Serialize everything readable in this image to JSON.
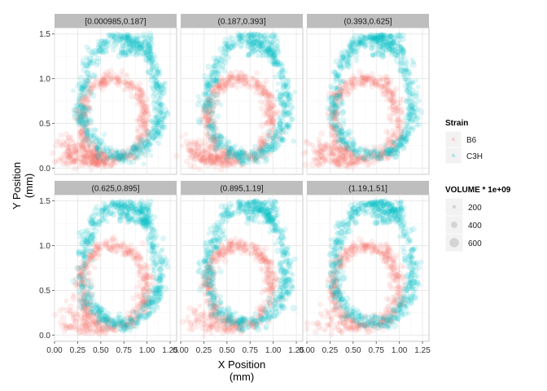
{
  "chart_data": {
    "type": "scatter",
    "facet_labels": [
      "[0.000985,0.187]",
      "(0.187,0.393]",
      "(0.393,0.625]",
      "(0.625,0.895]",
      "(0.895,1.19]",
      "(1.19,1.51]"
    ],
    "xlabel_line1": "X Position",
    "xlabel_line2": "(mm)",
    "ylabel_line1": "Y Position",
    "ylabel_line2": "(mm)",
    "xlim": [
      0.0,
      1.32
    ],
    "ylim": [
      -0.07,
      1.57
    ],
    "x_ticks": [
      0.0,
      0.25,
      0.5,
      0.75,
      1.0,
      1.25
    ],
    "x_tick_labels": [
      "0.00",
      "0.25",
      "0.50",
      "0.75",
      "1.00",
      "1.25"
    ],
    "y_ticks": [
      0.0,
      0.5,
      1.0,
      1.5
    ],
    "y_tick_labels": [
      "0.0",
      "0.5",
      "1.0",
      "1.5"
    ],
    "grid": true,
    "legend_placement": "right",
    "series": [
      {
        "name": "B6",
        "color": "#F8766D"
      },
      {
        "name": "C3H",
        "color": "#00BFC4"
      }
    ],
    "strain_legend": {
      "title": "Strain",
      "items": [
        "B6",
        "C3H"
      ]
    },
    "volume_legend": {
      "title": "VOLUME * 1e+09",
      "items": [
        {
          "label": "200",
          "value": 200
        },
        {
          "label": "400",
          "value": 400
        },
        {
          "label": "600",
          "value": 600
        }
      ]
    }
  }
}
